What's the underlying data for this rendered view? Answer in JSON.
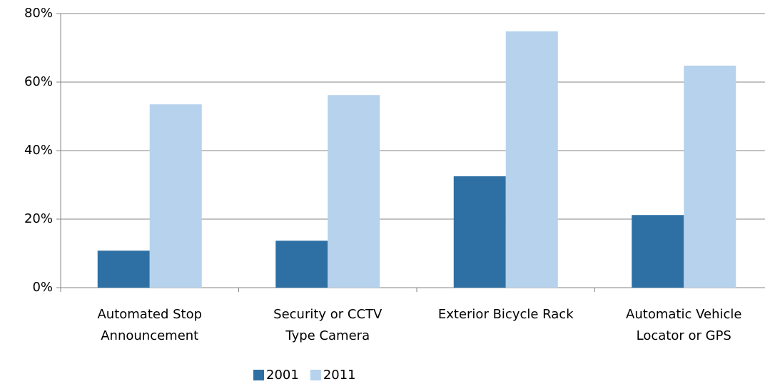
{
  "chart_data": {
    "type": "bar",
    "categories": [
      [
        "Automated Stop",
        "Announcement"
      ],
      [
        "Security or CCTV",
        "Type Camera"
      ],
      [
        "Exterior Bicycle Rack"
      ],
      [
        "Automatic Vehicle",
        "Locator or GPS"
      ]
    ],
    "series": [
      {
        "name": "2001",
        "color": "#2e70a4",
        "values": [
          10.8,
          13.7,
          32.5,
          21.2
        ]
      },
      {
        "name": "2011",
        "color": "#b6d2ec",
        "values": [
          53.5,
          56.2,
          74.8,
          64.8
        ]
      }
    ],
    "ylim": [
      0,
      80
    ],
    "yticks": [
      {
        "value": 0,
        "label": "0%"
      },
      {
        "value": 20,
        "label": "20%"
      },
      {
        "value": 40,
        "label": "40%"
      },
      {
        "value": 60,
        "label": "60%"
      },
      {
        "value": 80,
        "label": "80%"
      }
    ],
    "grid": true,
    "legend": "bottom"
  }
}
